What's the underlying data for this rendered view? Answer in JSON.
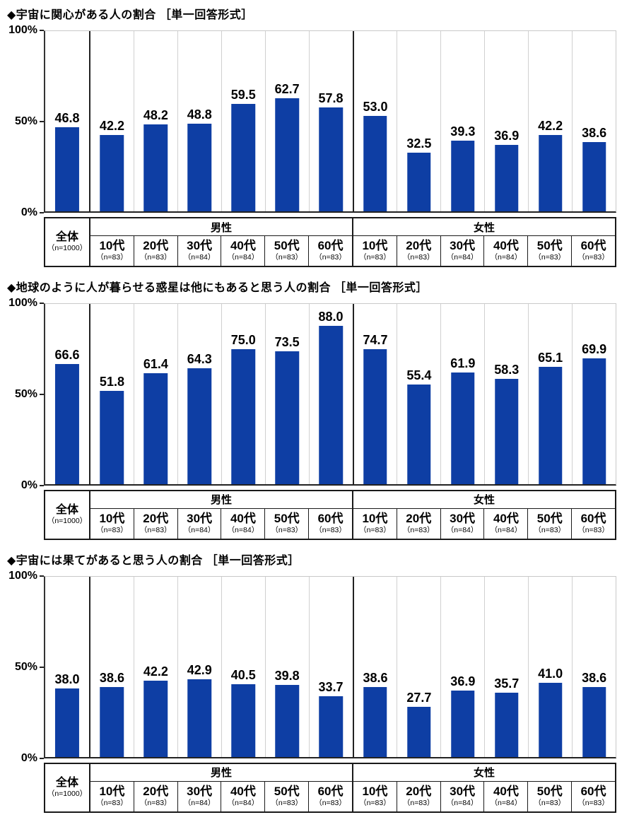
{
  "accent_color": "#0E3EA4",
  "yaxis": {
    "ticks": [
      {
        "label": "100%",
        "pos": 0
      },
      {
        "label": "50%",
        "pos": 50
      },
      {
        "label": "0%",
        "pos": 100
      }
    ]
  },
  "axis_table": {
    "overall_label": "全体",
    "overall_n": "（n=1000）",
    "groups": [
      {
        "label": "男性",
        "ages": [
          {
            "label": "10代",
            "n": "（n=83）"
          },
          {
            "label": "20代",
            "n": "（n=83）"
          },
          {
            "label": "30代",
            "n": "（n=84）"
          },
          {
            "label": "40代",
            "n": "（n=84）"
          },
          {
            "label": "50代",
            "n": "（n=83）"
          },
          {
            "label": "60代",
            "n": "（n=83）"
          }
        ]
      },
      {
        "label": "女性",
        "ages": [
          {
            "label": "10代",
            "n": "（n=83）"
          },
          {
            "label": "20代",
            "n": "（n=83）"
          },
          {
            "label": "30代",
            "n": "（n=84）"
          },
          {
            "label": "40代",
            "n": "（n=84）"
          },
          {
            "label": "50代",
            "n": "（n=83）"
          },
          {
            "label": "60代",
            "n": "（n=83）"
          }
        ]
      }
    ]
  },
  "chart_data": [
    {
      "type": "bar",
      "title": "◆宇宙に関心がある人の割合 ［単一回答形式］",
      "ylim": [
        0,
        100
      ],
      "yticks": [
        "100%",
        "50%",
        "0%"
      ],
      "bar_color": "#0E3EA4",
      "grid": "vertical-column-separators",
      "legend": "none",
      "categories": [
        "全体",
        "男性10代",
        "男性20代",
        "男性30代",
        "男性40代",
        "男性50代",
        "男性60代",
        "女性10代",
        "女性20代",
        "女性30代",
        "女性40代",
        "女性50代",
        "女性60代"
      ],
      "values": [
        46.8,
        42.2,
        48.2,
        48.8,
        59.5,
        62.7,
        57.8,
        53.0,
        32.5,
        39.3,
        36.9,
        42.2,
        38.6
      ],
      "display": [
        "46.8",
        "42.2",
        "48.2",
        "48.8",
        "59.5",
        "62.7",
        "57.8",
        "53.0",
        "32.5",
        "39.3",
        "36.9",
        "42.2",
        "38.6"
      ]
    },
    {
      "type": "bar",
      "title": "◆地球のように人が暮らせる惑星は他にもあると思う人の割合 ［単一回答形式］",
      "ylim": [
        0,
        100
      ],
      "yticks": [
        "100%",
        "50%",
        "0%"
      ],
      "bar_color": "#0E3EA4",
      "grid": "vertical-column-separators",
      "legend": "none",
      "categories": [
        "全体",
        "男性10代",
        "男性20代",
        "男性30代",
        "男性40代",
        "男性50代",
        "男性60代",
        "女性10代",
        "女性20代",
        "女性30代",
        "女性40代",
        "女性50代",
        "女性60代"
      ],
      "values": [
        66.6,
        51.8,
        61.4,
        64.3,
        75.0,
        73.5,
        88.0,
        74.7,
        55.4,
        61.9,
        58.3,
        65.1,
        69.9
      ],
      "display": [
        "66.6",
        "51.8",
        "61.4",
        "64.3",
        "75.0",
        "73.5",
        "88.0",
        "74.7",
        "55.4",
        "61.9",
        "58.3",
        "65.1",
        "69.9"
      ]
    },
    {
      "type": "bar",
      "title": "◆宇宙には果てがあると思う人の割合 ［単一回答形式］",
      "ylim": [
        0,
        100
      ],
      "yticks": [
        "100%",
        "50%",
        "0%"
      ],
      "bar_color": "#0E3EA4",
      "grid": "vertical-column-separators",
      "legend": "none",
      "categories": [
        "全体",
        "男性10代",
        "男性20代",
        "男性30代",
        "男性40代",
        "男性50代",
        "男性60代",
        "女性10代",
        "女性20代",
        "女性30代",
        "女性40代",
        "女性50代",
        "女性60代"
      ],
      "values": [
        38.0,
        38.6,
        42.2,
        42.9,
        40.5,
        39.8,
        33.7,
        38.6,
        27.7,
        36.9,
        35.7,
        41.0,
        38.6
      ],
      "display": [
        "38.0",
        "38.6",
        "42.2",
        "42.9",
        "40.5",
        "39.8",
        "33.7",
        "38.6",
        "27.7",
        "36.9",
        "35.7",
        "41.0",
        "38.6"
      ]
    }
  ]
}
